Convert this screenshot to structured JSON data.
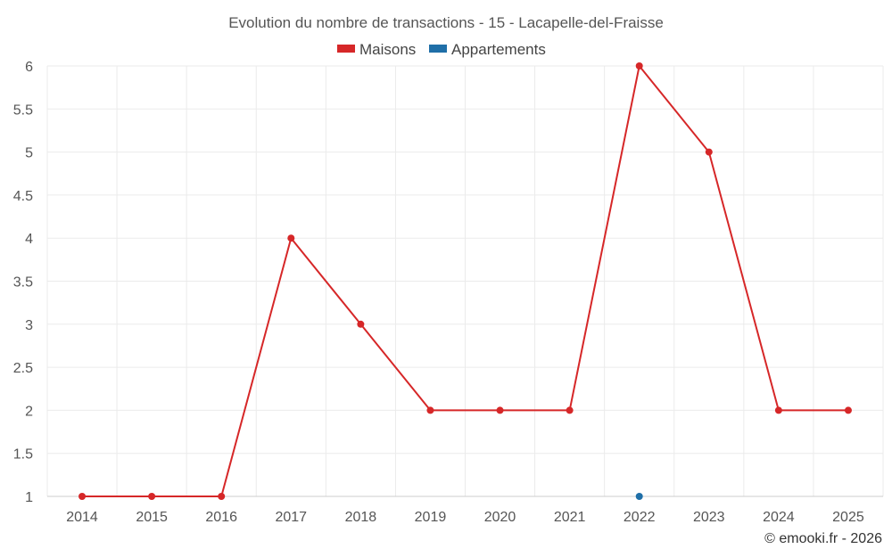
{
  "chart_data": {
    "type": "line",
    "title": "Evolution du nombre de transactions - 15 - Lacapelle-del-Fraisse",
    "x": [
      "2014",
      "2015",
      "2016",
      "2017",
      "2018",
      "2019",
      "2020",
      "2021",
      "2022",
      "2023",
      "2024",
      "2025"
    ],
    "yticks": [
      "1",
      "1.5",
      "2",
      "2.5",
      "3",
      "3.5",
      "4",
      "4.5",
      "5",
      "5.5",
      "6"
    ],
    "ylim": [
      1,
      6
    ],
    "grid": true,
    "legend_position": "top-center",
    "series": [
      {
        "name": "Maisons",
        "color": "#d62728",
        "values": [
          1,
          1,
          1,
          4,
          3,
          2,
          2,
          2,
          6,
          5,
          2,
          2
        ]
      },
      {
        "name": "Appartements",
        "color": "#1f6fa8",
        "values": [
          null,
          null,
          null,
          null,
          null,
          null,
          null,
          null,
          1,
          null,
          null,
          null
        ]
      }
    ]
  },
  "credit": "© emooki.fr - 2026"
}
